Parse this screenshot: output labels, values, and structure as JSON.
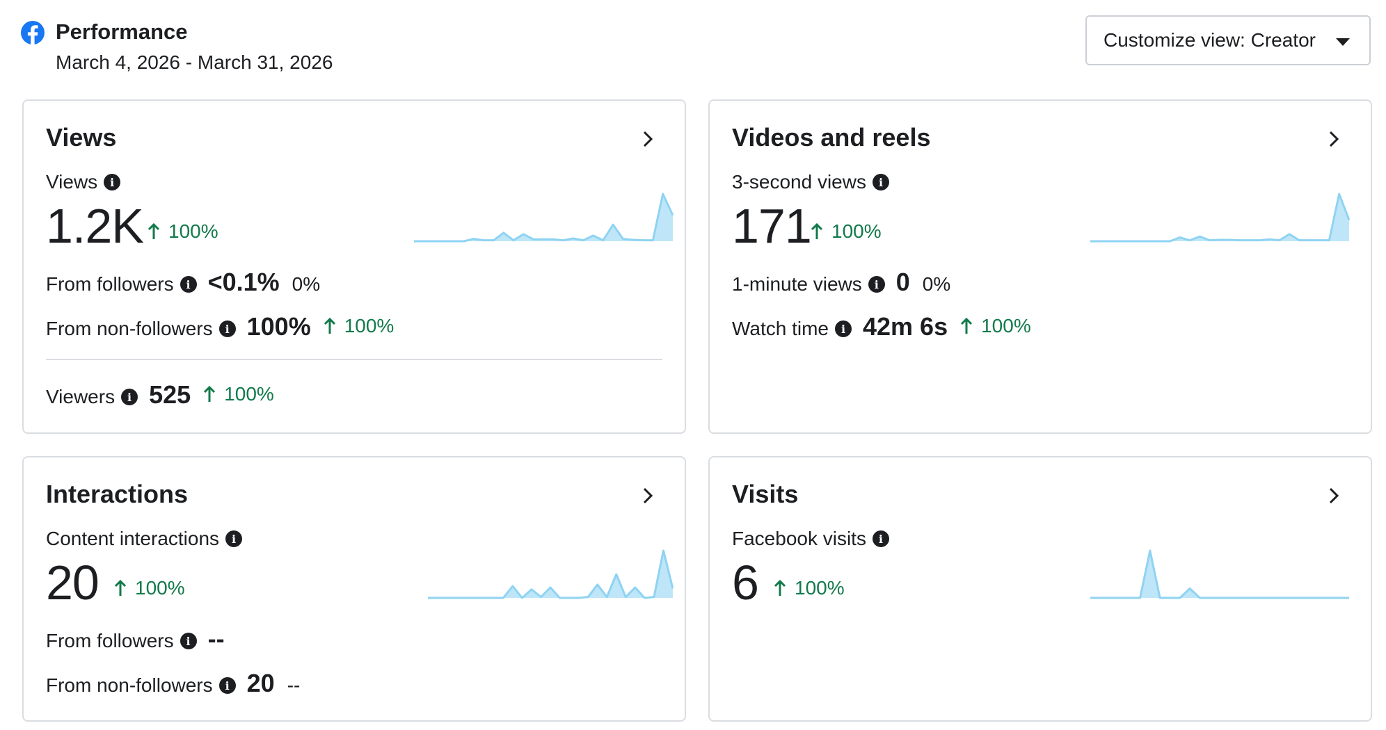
{
  "header": {
    "title": "Performance",
    "date_range": "March 4, 2026 - March 31, 2026",
    "customize_label": "Customize view: Creator"
  },
  "colors": {
    "accent_green": "#127a4a",
    "spark_line": "#8fd3f2",
    "spark_fill": "#bfe6f8",
    "facebook_blue": "#1877f2"
  },
  "cards": {
    "views": {
      "title": "Views",
      "metric_label": "Views",
      "metric_value": "1.2K",
      "metric_change": "100%",
      "followers_label": "From followers",
      "followers_value": "<0.1%",
      "followers_change": "0%",
      "nonfollowers_label": "From non-followers",
      "nonfollowers_value": "100%",
      "nonfollowers_change": "100%",
      "viewers_label": "Viewers",
      "viewers_value": "525",
      "viewers_change": "100%",
      "sparkline": [
        0,
        0,
        0,
        0,
        0,
        0,
        0.05,
        0.02,
        0.02,
        0.18,
        0.02,
        0.15,
        0.04,
        0.04,
        0.04,
        0.02,
        0.06,
        0.02,
        0.12,
        0.02,
        0.35,
        0.05,
        0.03,
        0.02,
        0.02,
        1.0,
        0.55
      ]
    },
    "videos": {
      "title": "Videos and reels",
      "metric_label": "3-second views",
      "metric_value": "171",
      "metric_change": "100%",
      "oneminute_label": "1-minute views",
      "oneminute_value": "0",
      "oneminute_change": "0%",
      "watch_label": "Watch time",
      "watch_value": "42m 6s",
      "watch_change": "100%",
      "sparkline": [
        0,
        0,
        0,
        0,
        0,
        0,
        0,
        0,
        0,
        0.08,
        0.02,
        0.1,
        0.02,
        0.03,
        0.03,
        0.02,
        0.02,
        0.02,
        0.04,
        0.02,
        0.15,
        0.02,
        0.02,
        0.02,
        0.02,
        1.0,
        0.45
      ]
    },
    "interactions": {
      "title": "Interactions",
      "metric_label": "Content interactions",
      "metric_value": "20",
      "metric_change": "100%",
      "followers_label": "From followers",
      "followers_value": "--",
      "nonfollowers_label": "From non-followers",
      "nonfollowers_value": "20",
      "nonfollowers_change": "--",
      "sparkline": [
        0,
        0,
        0,
        0,
        0,
        0,
        0,
        0,
        0,
        0.25,
        0,
        0.18,
        0.02,
        0.22,
        0,
        0,
        0,
        0.02,
        0.28,
        0.02,
        0.5,
        0.02,
        0.22,
        0,
        0.02,
        1.0,
        0.2
      ]
    },
    "visits": {
      "title": "Visits",
      "metric_label": "Facebook visits",
      "metric_value": "6",
      "metric_change": "100%",
      "sparkline": [
        0,
        0,
        0,
        0,
        0,
        0,
        1.0,
        0,
        0,
        0,
        0.2,
        0,
        0,
        0,
        0,
        0,
        0,
        0,
        0,
        0,
        0,
        0,
        0,
        0,
        0,
        0,
        0
      ]
    }
  }
}
